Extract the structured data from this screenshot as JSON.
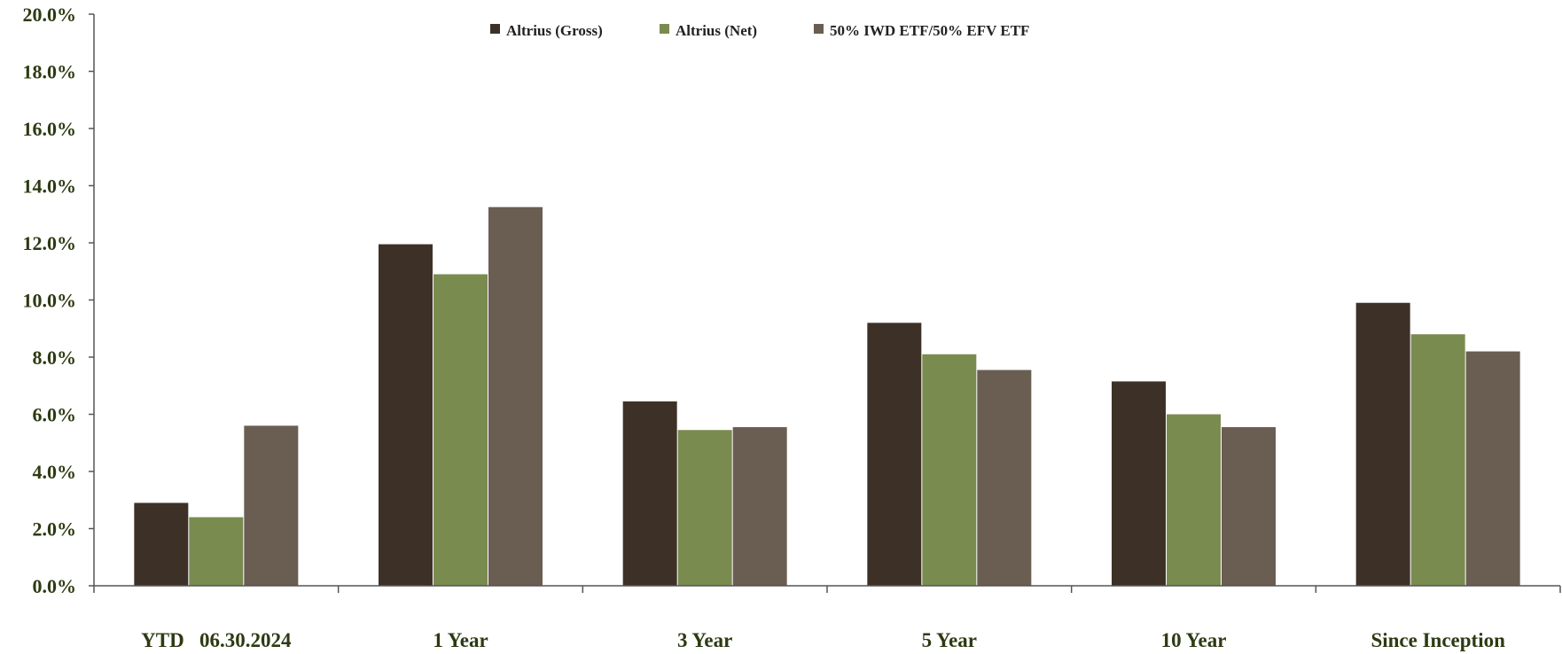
{
  "chart_data": {
    "type": "bar",
    "categories": [
      "YTD   06.30.2024",
      "1 Year",
      "3 Year",
      "5 Year",
      "10 Year",
      "Since Inception"
    ],
    "series": [
      {
        "name": "Altrius (Gross)",
        "color": "#3d3127",
        "values": [
          2.9,
          11.95,
          6.45,
          9.2,
          7.15,
          9.9
        ]
      },
      {
        "name": "Altrius (Net)",
        "color": "#7a8b50",
        "values": [
          2.4,
          10.9,
          5.45,
          8.1,
          6.0,
          8.8
        ]
      },
      {
        "name": "50% IWD ETF/50% EFV ETF",
        "color": "#6a5d52",
        "values": [
          5.6,
          13.25,
          5.55,
          7.55,
          5.55,
          8.2
        ]
      }
    ],
    "ylim": [
      0,
      20
    ],
    "y_ticks": [
      "0.0%",
      "2.0%",
      "4.0%",
      "6.0%",
      "8.0%",
      "10.0%",
      "12.0%",
      "14.0%",
      "16.0%",
      "18.0%",
      "20.0%"
    ],
    "y_unit": "%",
    "legend_position": "top-center",
    "grid": false
  }
}
